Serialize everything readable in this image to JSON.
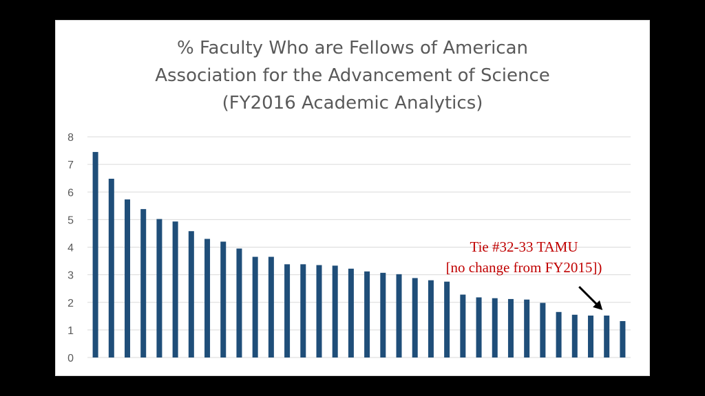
{
  "chart_data": {
    "type": "bar",
    "title": [
      "% Faculty Who are Fellows of American",
      "Association for the Advancement of Science",
      "(FY2016 Academic Analytics)"
    ],
    "xlabel": "",
    "ylabel": "",
    "ylim": [
      0,
      8
    ],
    "yticks": [
      0,
      1,
      2,
      3,
      4,
      5,
      6,
      7,
      8
    ],
    "grid": true,
    "legend": "none",
    "bar_color": "#1f4e79",
    "values": [
      7.45,
      6.48,
      5.73,
      5.38,
      5.02,
      4.93,
      4.58,
      4.3,
      4.2,
      3.95,
      3.65,
      3.65,
      3.38,
      3.38,
      3.35,
      3.33,
      3.22,
      3.12,
      3.07,
      3.02,
      2.88,
      2.8,
      2.75,
      2.28,
      2.18,
      2.15,
      2.12,
      2.1,
      1.98,
      1.65,
      1.55,
      1.52,
      1.52,
      1.32
    ],
    "annotation": {
      "lines": [
        "Tie #32-33 TAMU",
        "[no change from FY2015])"
      ],
      "color": "#c00000",
      "points_to_bar": 33
    }
  }
}
